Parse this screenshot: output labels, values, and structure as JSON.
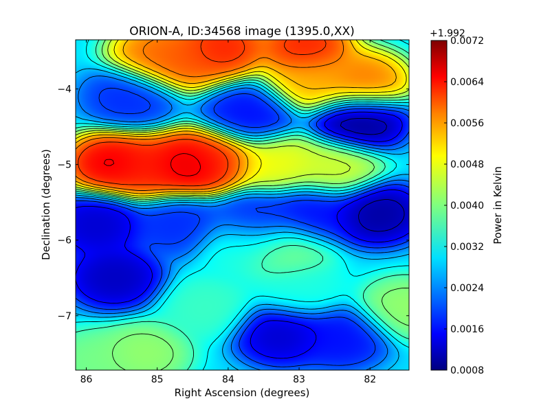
{
  "chart_data": {
    "type": "heatmap",
    "title": "ORION-A, ID:34568 image (1395.0,XX)",
    "xlabel": "Right Ascension (degrees)",
    "ylabel": "Declination (degrees)",
    "x_ticks": [
      "86",
      "85",
      "84",
      "83",
      "82"
    ],
    "y_ticks": [
      "−4",
      "−5",
      "−6",
      "−7"
    ],
    "xlim": [
      86.15,
      81.45
    ],
    "ylim": [
      -7.72,
      -3.35
    ],
    "colorbar": {
      "label": "Power in Kelvin",
      "offset_label": "+1.992",
      "range": [
        0.0008,
        0.0072
      ],
      "ticks": [
        "0.0072",
        "0.0064",
        "0.0056",
        "0.0048",
        "0.0040",
        "0.0032",
        "0.0024",
        "0.0016",
        "0.0008"
      ],
      "colormap": [
        "#00007f",
        "#0000ff",
        "#007fff",
        "#00ffff",
        "#7fff7f",
        "#ffff00",
        "#ff7f00",
        "#ff0000",
        "#7f0000"
      ]
    },
    "contours": true,
    "features": [
      {
        "ra": 85.65,
        "dec": -4.98,
        "value": 0.0067
      },
      {
        "ra": 84.55,
        "dec": -5.0,
        "value": 0.0069
      },
      {
        "ra": 84.2,
        "dec": -4.93,
        "value": 0.0062
      },
      {
        "ra": 85.1,
        "dec": -5.05,
        "value": 0.0063
      },
      {
        "ra": 83.3,
        "dec": -4.98,
        "value": 0.0048
      },
      {
        "ra": 82.5,
        "dec": -5.05,
        "value": 0.0046
      },
      {
        "ra": 82.9,
        "dec": -3.45,
        "value": 0.0064
      },
      {
        "ra": 84.1,
        "dec": -3.45,
        "value": 0.0064
      },
      {
        "ra": 82.1,
        "dec": -3.9,
        "value": 0.0058
      },
      {
        "ra": 85.0,
        "dec": -3.55,
        "value": 0.0058
      },
      {
        "ra": 84.65,
        "dec": -3.6,
        "value": 0.006
      },
      {
        "ra": 82.8,
        "dec": -3.9,
        "value": 0.0054
      },
      {
        "ra": 82.15,
        "dec": -4.42,
        "value": 0.0008
      },
      {
        "ra": 83.7,
        "dec": -4.35,
        "value": 0.0016
      },
      {
        "ra": 85.4,
        "dec": -4.1,
        "value": 0.0018
      },
      {
        "ra": 81.9,
        "dec": -5.65,
        "value": 0.0009
      },
      {
        "ra": 85.85,
        "dec": -5.8,
        "value": 0.0012
      },
      {
        "ra": 85.6,
        "dec": -6.5,
        "value": 0.0011
      },
      {
        "ra": 84.7,
        "dec": -5.8,
        "value": 0.0018
      },
      {
        "ra": 83.6,
        "dec": -5.75,
        "value": 0.0018
      },
      {
        "ra": 82.8,
        "dec": -5.65,
        "value": 0.0016
      },
      {
        "ra": 83.25,
        "dec": -7.25,
        "value": 0.0012
      },
      {
        "ra": 82.4,
        "dec": -7.3,
        "value": 0.0016
      },
      {
        "ra": 83.2,
        "dec": -6.15,
        "value": 0.004
      },
      {
        "ra": 83.8,
        "dec": -6.1,
        "value": 0.0034
      },
      {
        "ra": 84.3,
        "dec": -6.9,
        "value": 0.0036
      },
      {
        "ra": 85.2,
        "dec": -7.5,
        "value": 0.0042
      },
      {
        "ra": 81.5,
        "dec": -6.9,
        "value": 0.0042
      },
      {
        "ra": 83.0,
        "dec": -6.65,
        "value": 0.0034
      },
      {
        "ra": 85.9,
        "dec": -7.6,
        "value": 0.004
      }
    ]
  }
}
